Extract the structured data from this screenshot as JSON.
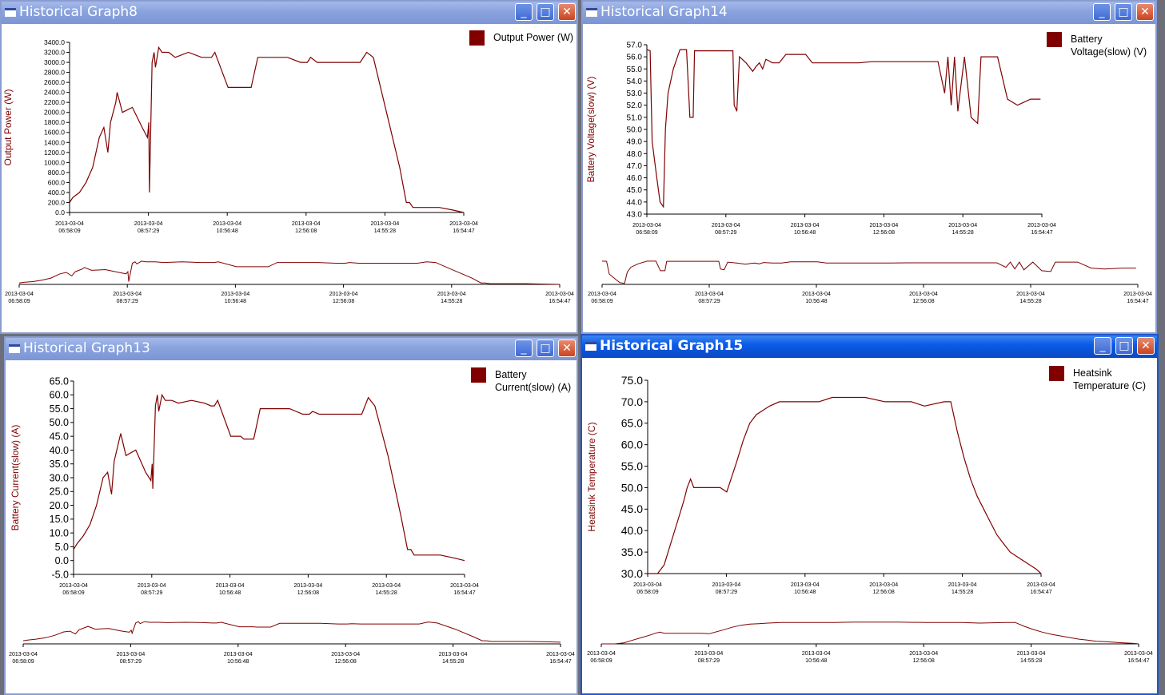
{
  "windows": [
    {
      "title": "Historical Graph8",
      "active": false
    },
    {
      "title": "Historical Graph14",
      "active": false
    },
    {
      "title": "Historical Graph13",
      "active": false
    },
    {
      "title": "Historical Graph15",
      "active": true
    }
  ],
  "window_buttons": {
    "minimize": "_",
    "maximize": "□",
    "close": "✕"
  },
  "icons": [
    "window-icon",
    "minimize-icon",
    "maximize-icon",
    "close-icon"
  ],
  "colors": {
    "series": "#800000",
    "axis": "#000000",
    "ylabel": "#800000"
  },
  "time_ticks": [
    {
      "d": "2013-03-04",
      "t": "06:58:09"
    },
    {
      "d": "2013-03-04",
      "t": "08:57:29"
    },
    {
      "d": "2013-03-04",
      "t": "10:56:48"
    },
    {
      "d": "2013-03-04",
      "t": "12:56:08"
    },
    {
      "d": "2013-03-04",
      "t": "14:55:28"
    },
    {
      "d": "2013-03-04",
      "t": "16:54:47"
    }
  ],
  "chart_data": [
    {
      "type": "line",
      "legend": [
        "Output Power (W)"
      ],
      "legend_position": "top-right",
      "ylabel": "Output Power (W)",
      "ylim": [
        0,
        3400
      ],
      "yticks": [
        "0.0",
        "200.0",
        "400.0",
        "600.0",
        "800.0",
        "1000.0",
        "1200.0",
        "1400.0",
        "1600.0",
        "1800.0",
        "2000.0",
        "2200.0",
        "2400.0",
        "2600.0",
        "2800.0",
        "3000.0",
        "3200.0",
        "3400.0"
      ],
      "xlim_minutes": [
        0,
        597
      ],
      "overview": true,
      "series": [
        {
          "name": "Output Power (W)",
          "x_minutes": [
            0,
            5,
            15,
            25,
            35,
            45,
            52,
            58,
            62,
            70,
            72,
            80,
            95,
            110,
            118,
            120,
            121,
            125,
            128,
            130,
            135,
            140,
            150,
            160,
            180,
            200,
            210,
            215,
            220,
            240,
            255,
            260,
            265,
            275,
            285,
            300,
            330,
            350,
            360,
            365,
            375,
            380,
            400,
            420,
            430,
            440,
            450,
            460,
            480,
            500,
            510,
            515,
            520,
            540,
            560,
            580,
            597
          ],
          "values": [
            200,
            300,
            400,
            600,
            900,
            1500,
            1700,
            1200,
            1800,
            2200,
            2400,
            2000,
            2100,
            1700,
            1500,
            1800,
            400,
            3000,
            3200,
            2900,
            3300,
            3200,
            3200,
            3100,
            3200,
            3100,
            3100,
            3100,
            3200,
            2500,
            2500,
            2500,
            2500,
            2500,
            3100,
            3100,
            3100,
            3000,
            3000,
            3100,
            3000,
            3000,
            3000,
            3000,
            3000,
            3000,
            3200,
            3100,
            2000,
            900,
            200,
            200,
            100,
            100,
            100,
            50,
            0
          ]
        }
      ]
    },
    {
      "type": "line",
      "legend": [
        "Battery",
        "Voltage(slow) (V)"
      ],
      "legend_position": "top-right",
      "ylabel": "Battery Voltage(slow) (V)",
      "ylim": [
        43,
        57
      ],
      "yticks": [
        "43.0",
        "44.0",
        "45.0",
        "46.0",
        "47.0",
        "48.0",
        "49.0",
        "50.0",
        "51.0",
        "52.0",
        "53.0",
        "54.0",
        "55.0",
        "56.0",
        "57.0"
      ],
      "xlim_minutes": [
        0,
        597
      ],
      "overview": true,
      "series": [
        {
          "name": "Battery Voltage(slow) (V)",
          "x_minutes": [
            0,
            5,
            8,
            15,
            20,
            25,
            28,
            32,
            40,
            50,
            60,
            65,
            70,
            72,
            74,
            78,
            85,
            90,
            100,
            110,
            120,
            130,
            132,
            136,
            140,
            150,
            160,
            165,
            170,
            175,
            180,
            190,
            200,
            210,
            215,
            220,
            240,
            250,
            260,
            280,
            300,
            320,
            340,
            360,
            380,
            420,
            440,
            450,
            455,
            460,
            465,
            470,
            480,
            490,
            500,
            505,
            510,
            520,
            530,
            545,
            560,
            580,
            595
          ],
          "values": [
            56.6,
            56.5,
            49,
            46,
            44,
            43.6,
            50,
            53,
            55,
            56.6,
            56.6,
            51,
            51,
            56.5,
            56.5,
            56.5,
            56.5,
            56.5,
            56.5,
            56.5,
            56.5,
            56.5,
            52,
            51.5,
            56,
            55.5,
            54.8,
            55.2,
            55.5,
            55,
            55.8,
            55.5,
            55.5,
            56.2,
            56.2,
            56.2,
            56.2,
            55.5,
            55.5,
            55.5,
            55.5,
            55.5,
            55.6,
            55.6,
            55.6,
            55.6,
            55.6,
            53,
            56,
            52,
            56,
            51.5,
            56,
            51,
            50.5,
            56,
            56,
            56,
            56,
            52.5,
            52,
            52.5,
            52.5
          ]
        }
      ]
    },
    {
      "type": "line",
      "legend": [
        "Battery",
        "Current(slow) (A)"
      ],
      "legend_position": "top-right",
      "ylabel": "Battery Current(slow) (A)",
      "ylim": [
        -5,
        65
      ],
      "yticks": [
        "-5.0",
        "0.0",
        "5.0",
        "10.0",
        "15.0",
        "20.0",
        "25.0",
        "30.0",
        "35.0",
        "40.0",
        "45.0",
        "50.0",
        "55.0",
        "60.0",
        "65.0"
      ],
      "xlim_minutes": [
        0,
        597
      ],
      "overview": true,
      "series": [
        {
          "name": "Battery Current(slow) (A)",
          "x_minutes": [
            0,
            5,
            15,
            25,
            35,
            45,
            52,
            58,
            62,
            70,
            72,
            80,
            95,
            110,
            118,
            120,
            121,
            125,
            128,
            130,
            135,
            140,
            150,
            160,
            180,
            200,
            210,
            215,
            220,
            240,
            255,
            260,
            265,
            275,
            285,
            300,
            330,
            350,
            360,
            365,
            375,
            380,
            400,
            420,
            430,
            440,
            450,
            460,
            480,
            500,
            510,
            515,
            520,
            540,
            560,
            580,
            597
          ],
          "values": [
            4,
            6,
            9,
            13,
            20,
            30,
            32,
            24,
            36,
            44,
            46,
            38,
            40,
            32,
            29,
            35,
            26,
            56,
            60,
            54,
            60,
            58,
            58,
            57,
            58,
            57,
            56,
            56,
            58,
            45,
            45,
            44,
            44,
            44,
            55,
            55,
            55,
            53,
            53,
            54,
            53,
            53,
            53,
            53,
            53,
            53,
            59,
            56,
            38,
            16,
            4,
            4,
            2,
            2,
            2,
            1,
            0
          ]
        }
      ]
    },
    {
      "type": "line",
      "legend": [
        "Heatsink",
        "Temperature (C)"
      ],
      "legend_position": "top-right",
      "ylabel": "Heatsink Temperature (C)",
      "ylim": [
        30,
        75
      ],
      "yticks": [
        "30.0",
        "35.0",
        "40.0",
        "45.0",
        "50.0",
        "55.0",
        "60.0",
        "65.0",
        "70.0",
        "75.0"
      ],
      "xlim_minutes": [
        0,
        597
      ],
      "overview": true,
      "series": [
        {
          "name": "Heatsink Temperature (C)",
          "x_minutes": [
            0,
            15,
            25,
            35,
            45,
            55,
            60,
            65,
            70,
            80,
            90,
            100,
            110,
            120,
            135,
            145,
            155,
            165,
            175,
            185,
            200,
            220,
            240,
            260,
            280,
            300,
            330,
            360,
            400,
            420,
            450,
            460,
            470,
            480,
            490,
            500,
            510,
            520,
            530,
            540,
            550,
            560,
            570,
            580,
            590,
            597
          ],
          "values": [
            30,
            30,
            32,
            37,
            42,
            47,
            50,
            52,
            50,
            50,
            50,
            50,
            50,
            49,
            56,
            61,
            65,
            67,
            68,
            69,
            70,
            70,
            70,
            70,
            71,
            71,
            71,
            70,
            70,
            69,
            70,
            70,
            63,
            57,
            52,
            48,
            45,
            42,
            39,
            37,
            35,
            34,
            33,
            32,
            31,
            30
          ]
        }
      ]
    }
  ]
}
